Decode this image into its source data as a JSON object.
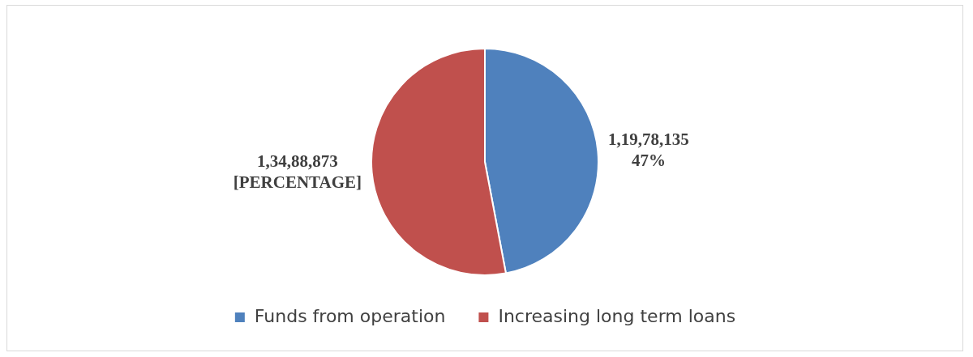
{
  "chart_data": {
    "type": "pie",
    "categories": [
      "Funds from operation",
      "Increasing long term loans"
    ],
    "values": [
      11978135,
      13488873
    ],
    "colors": [
      "#4f81bd",
      "#c0504d"
    ],
    "value_labels": [
      "1,19,78,135\n47%",
      "1,34,88,873\n[PERCENTAGE]"
    ],
    "legend": "bottom"
  }
}
